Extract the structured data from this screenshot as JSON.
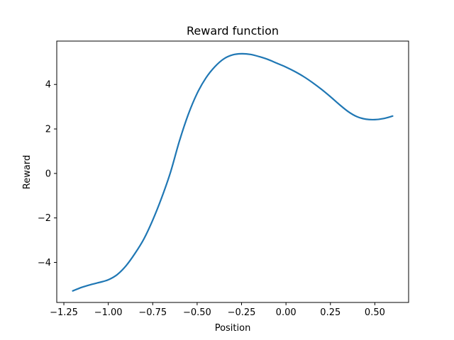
{
  "chart_data": {
    "type": "line",
    "title": "Reward function",
    "xlabel": "Position",
    "ylabel": "Reward",
    "xlim": [
      -1.29,
      0.69
    ],
    "ylim": [
      -5.8,
      5.95
    ],
    "grid": false,
    "x_ticks": [
      -1.25,
      -1.0,
      -0.75,
      -0.5,
      -0.25,
      0.0,
      0.25,
      0.5
    ],
    "x_tick_labels": [
      "−1.25",
      "−1.00",
      "−0.75",
      "−0.50",
      "−0.25",
      "0.00",
      "0.25",
      "0.50"
    ],
    "y_ticks": [
      -4,
      -2,
      0,
      2,
      4
    ],
    "y_tick_labels": [
      "−4",
      "−2",
      "0",
      "2",
      "4"
    ],
    "series": [
      {
        "color": "#1f77b4",
        "x": [
          -1.2,
          -1.15,
          -1.1,
          -1.05,
          -1.0,
          -0.95,
          -0.9,
          -0.85,
          -0.8,
          -0.75,
          -0.7,
          -0.65,
          -0.6,
          -0.55,
          -0.5,
          -0.45,
          -0.4,
          -0.35,
          -0.3,
          -0.25,
          -0.2,
          -0.15,
          -0.1,
          -0.05,
          0.0,
          0.05,
          0.1,
          0.15,
          0.2,
          0.25,
          0.3,
          0.35,
          0.4,
          0.45,
          0.5,
          0.55,
          0.6
        ],
        "y": [
          -5.28,
          -5.12,
          -5.0,
          -4.9,
          -4.78,
          -4.55,
          -4.15,
          -3.6,
          -2.95,
          -2.1,
          -1.1,
          0.05,
          1.45,
          2.65,
          3.6,
          4.3,
          4.8,
          5.15,
          5.33,
          5.38,
          5.35,
          5.25,
          5.12,
          4.95,
          4.78,
          4.58,
          4.35,
          4.08,
          3.78,
          3.45,
          3.1,
          2.78,
          2.55,
          2.44,
          2.42,
          2.47,
          2.58
        ]
      }
    ]
  }
}
